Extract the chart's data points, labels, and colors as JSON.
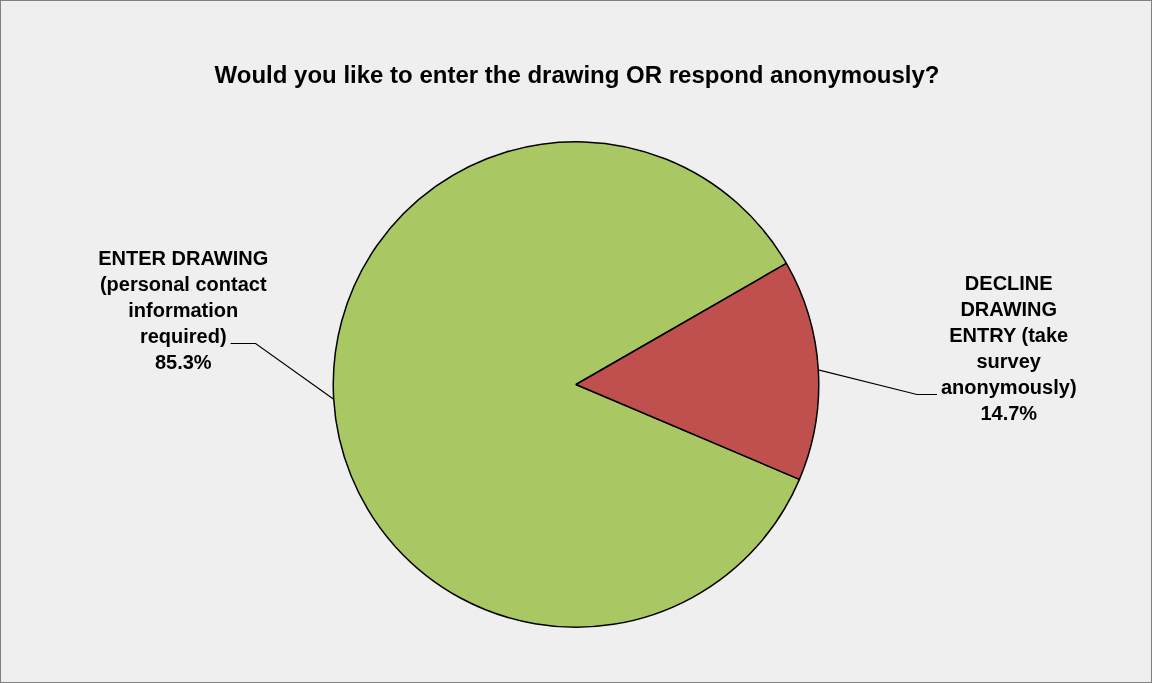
{
  "chart_data": {
    "type": "pie",
    "title": "Would you like to enter the drawing OR respond anonymously?",
    "categories": [
      "ENTER DRAWING (personal contact information required)",
      "DECLINE DRAWING ENTRY (take survey anonymously)"
    ],
    "values": [
      85.3,
      14.7
    ],
    "colors": [
      "#a9c864",
      "#c0504d"
    ],
    "value_labels": [
      "85.3%",
      "14.7%"
    ],
    "legend": false
  }
}
